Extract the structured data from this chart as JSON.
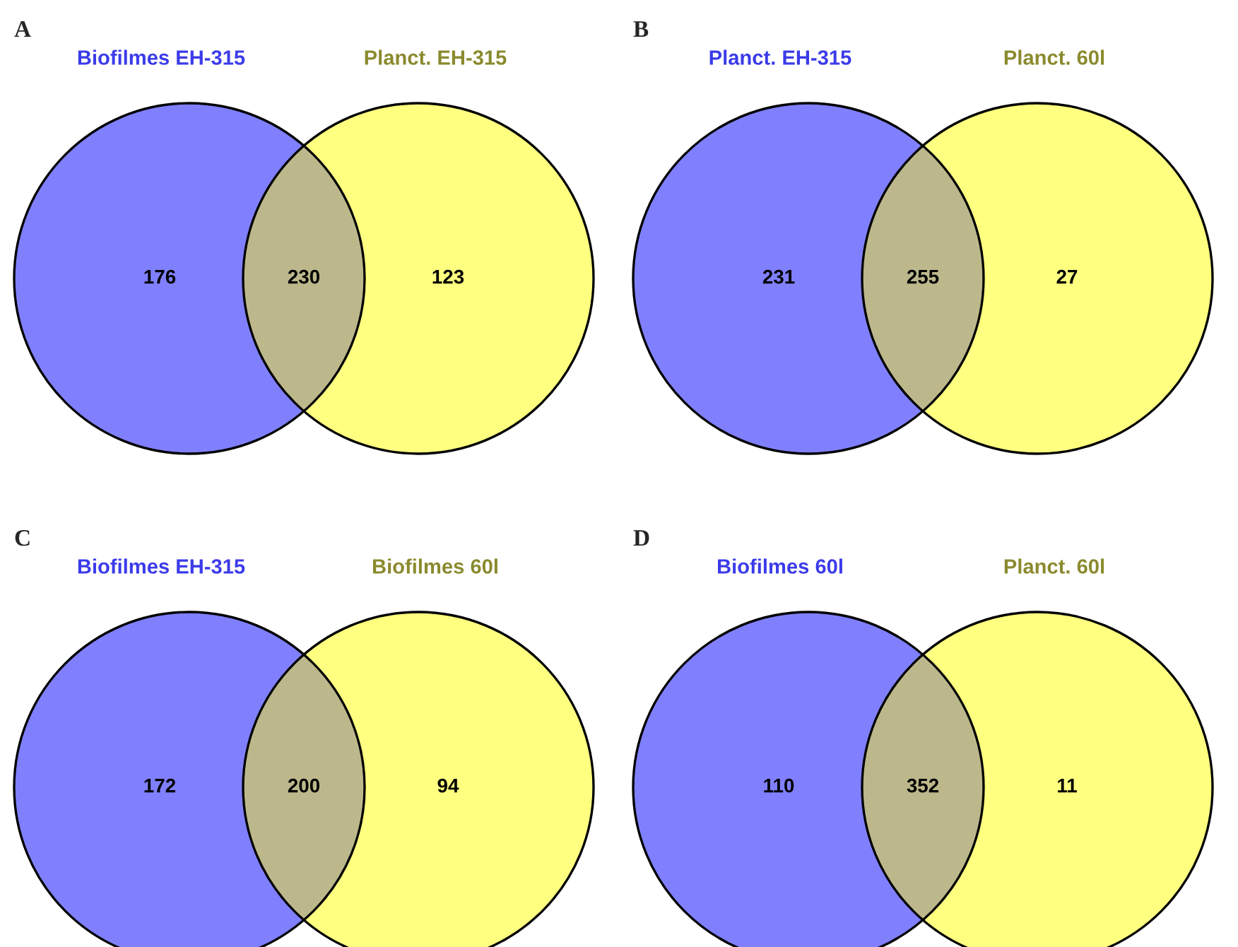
{
  "chart_data": [
    {
      "type": "other",
      "title": "A",
      "categories": [
        null,
        null,
        null
      ],
      "values": [
        176,
        230,
        123
      ],
      "data_labels": true,
      "colors": [
        "#8080ff",
        "#bdb88c",
        "#ffff80"
      ],
      "annotations": [
        "Biofilmes EH-315",
        "Planct. EH-315"
      ]
    },
    {
      "type": "other",
      "title": "B",
      "categories": [
        null,
        null,
        null
      ],
      "values": [
        231,
        255,
        27
      ],
      "data_labels": true,
      "colors": [
        "#8080ff",
        "#bdb88c",
        "#ffff80"
      ],
      "annotations": [
        "Planct. EH-315",
        "Planct. 60l"
      ]
    },
    {
      "type": "other",
      "title": "C",
      "categories": [
        null,
        null,
        null
      ],
      "values": [
        172,
        200,
        94
      ],
      "data_labels": true,
      "colors": [
        "#8080ff",
        "#bdb88c",
        "#ffff80"
      ],
      "annotations": [
        "Biofilmes EH-315",
        "Biofilmes 60l"
      ]
    },
    {
      "type": "other",
      "title": "D",
      "categories": [
        null,
        null,
        null
      ],
      "values": [
        110,
        352,
        11
      ],
      "data_labels": true,
      "colors": [
        "#8080ff",
        "#bdb88c",
        "#ffff80"
      ],
      "annotations": [
        "Biofilmes 60l",
        "Planct. 60l"
      ]
    }
  ]
}
